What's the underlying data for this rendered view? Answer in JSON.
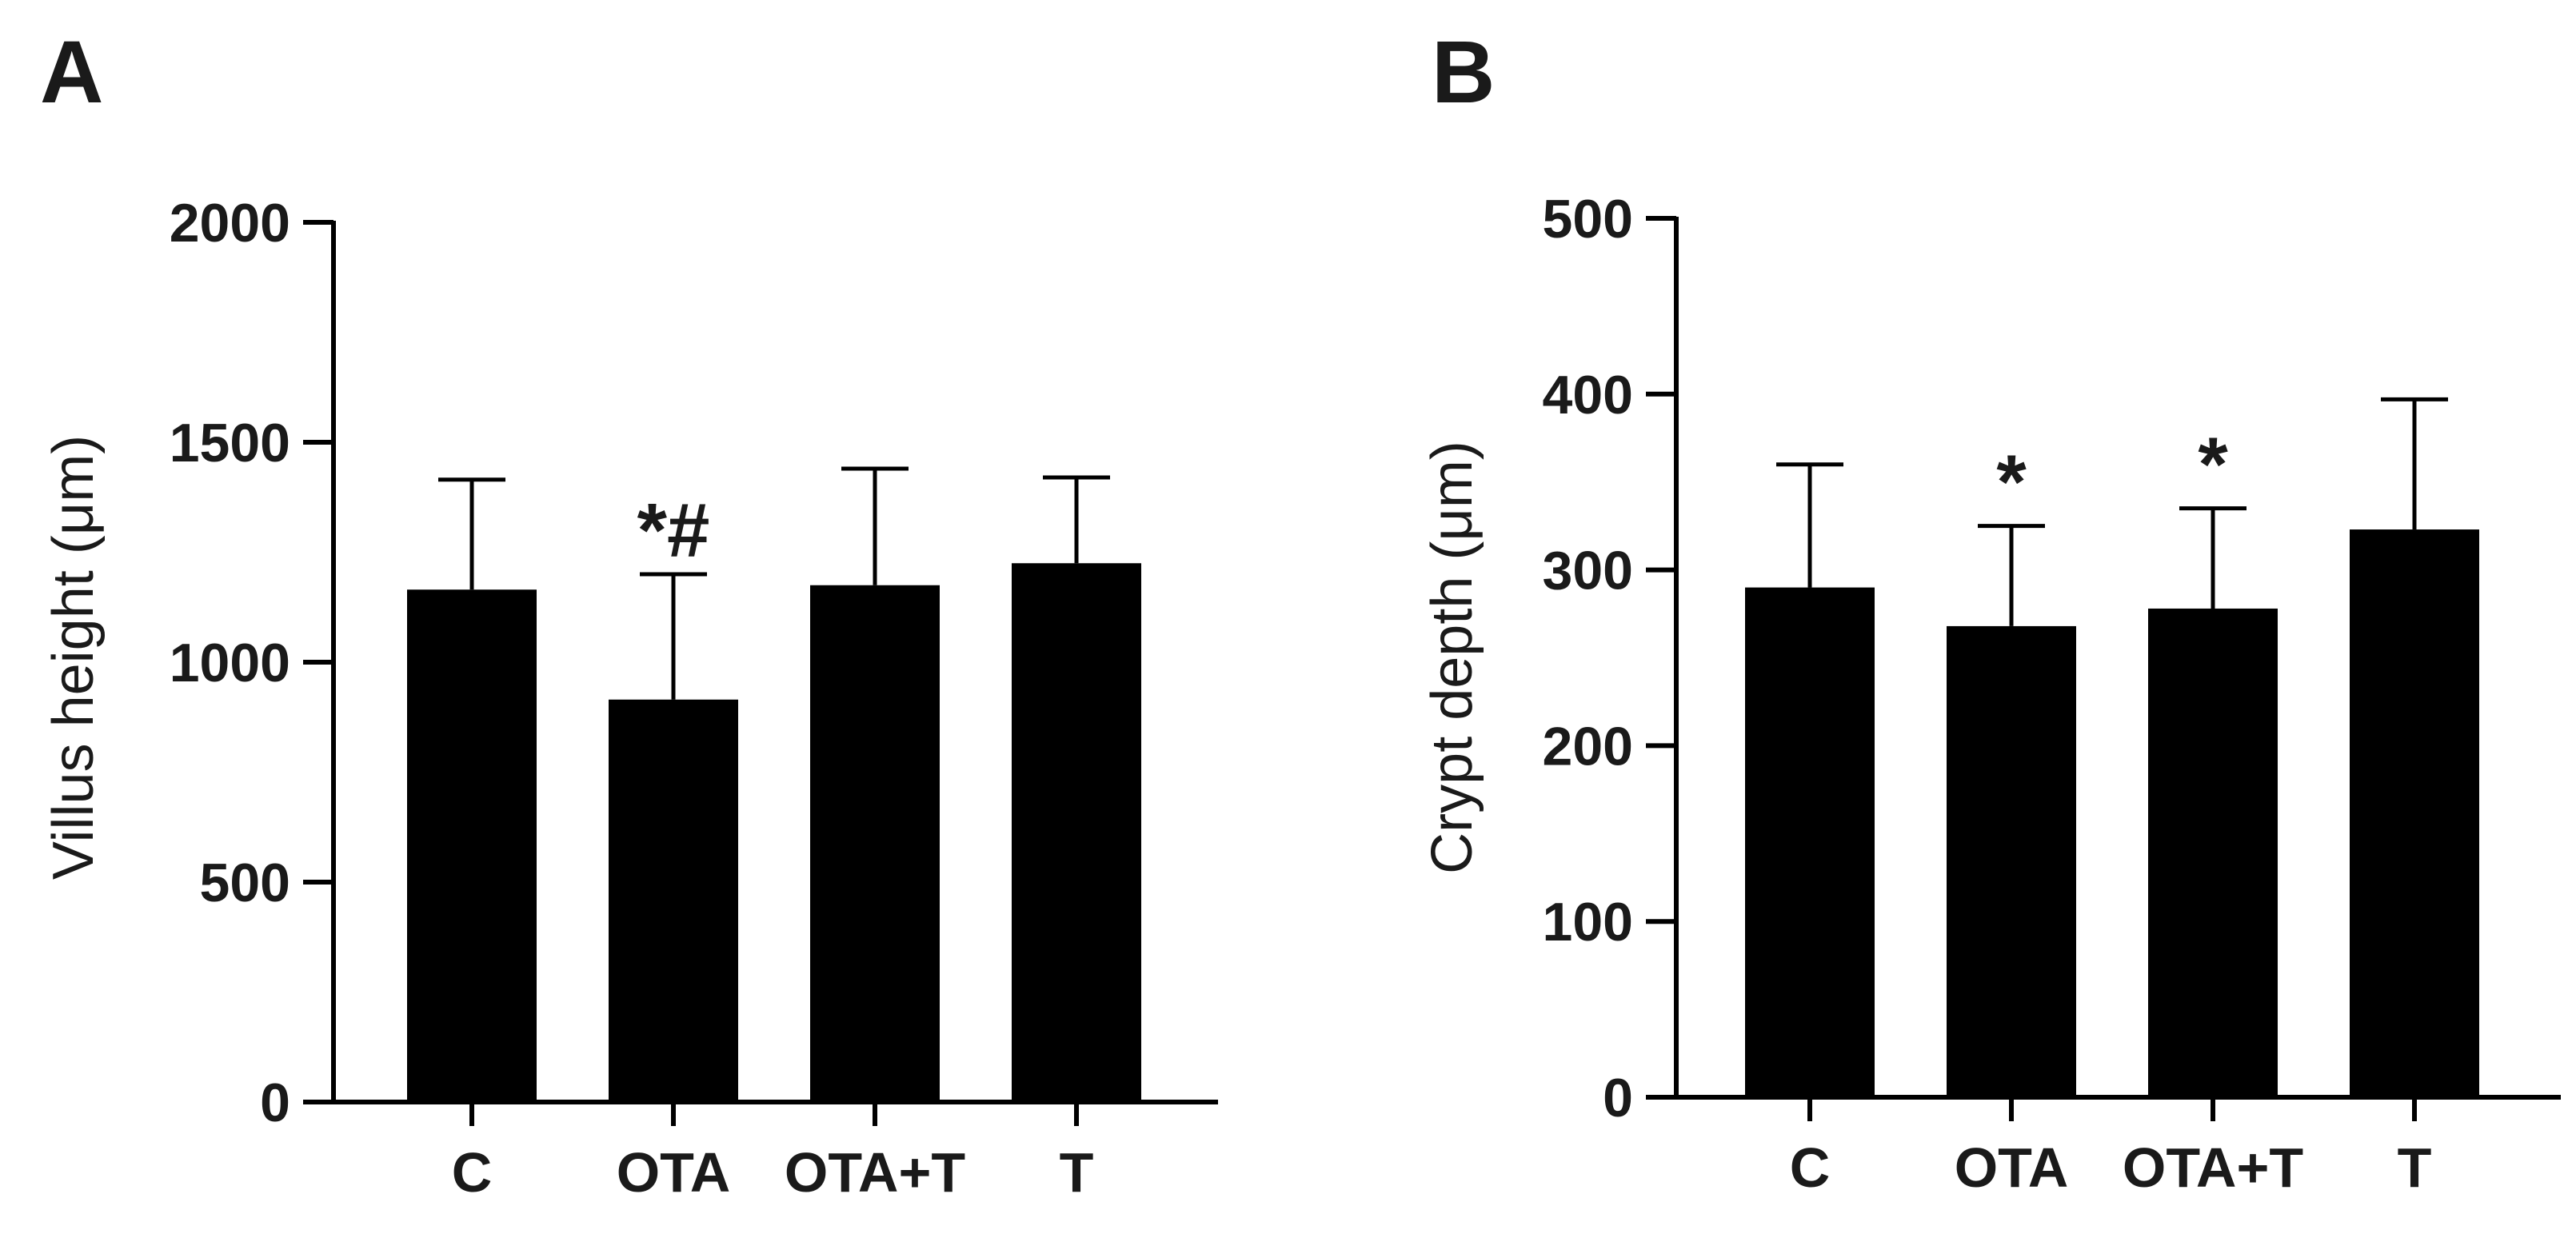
{
  "colors": {
    "bar": "#000000",
    "axis": "#000000",
    "error_bar": "#000000",
    "annotation": "#000000"
  },
  "chart_data": [
    {
      "panel": "A",
      "type": "bar",
      "categories": [
        "C",
        "OTA",
        "OTA+T",
        "T"
      ],
      "values": [
        1165,
        915,
        1175,
        1225
      ],
      "error_upper": [
        1415,
        1200,
        1440,
        1420
      ],
      "annotations": [
        "",
        "*#",
        "",
        ""
      ],
      "ylabel": "Villus height (μm)",
      "xlabel": "",
      "ylim": [
        0,
        2000
      ],
      "yticks": [
        0,
        500,
        1000,
        1500,
        2000
      ],
      "grid": false
    },
    {
      "panel": "B",
      "type": "bar",
      "categories": [
        "C",
        "OTA",
        "OTA+T",
        "T"
      ],
      "values": [
        290,
        268,
        278,
        323
      ],
      "error_upper": [
        360,
        325,
        335,
        397
      ],
      "annotations": [
        "",
        "*",
        "*",
        ""
      ],
      "ylabel": "Crypt depth (μm)",
      "xlabel": "",
      "ylim": [
        0,
        500
      ],
      "yticks": [
        0,
        100,
        200,
        300,
        400,
        500
      ],
      "grid": false
    }
  ]
}
